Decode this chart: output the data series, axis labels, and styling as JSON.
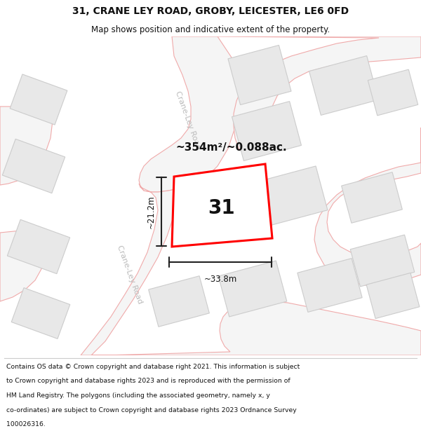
{
  "title_line1": "31, CRANE LEY ROAD, GROBY, LEICESTER, LE6 0FD",
  "title_line2": "Map shows position and indicative extent of the property.",
  "area_text": "~354m²/~0.088ac.",
  "property_number": "31",
  "dim_width": "~33.8m",
  "dim_height": "~21.2m",
  "footer_lines": [
    "Contains OS data © Crown copyright and database right 2021. This information is subject",
    "to Crown copyright and database rights 2023 and is reproduced with the permission of",
    "HM Land Registry. The polygons (including the associated geometry, namely x, y",
    "co-ordinates) are subject to Crown copyright and database rights 2023 Ordnance Survey",
    "100026316."
  ],
  "map_bg": "#ffffff",
  "road_line_color": "#f0aaaa",
  "building_fill": "#e8e8e8",
  "building_edge": "#cccccc",
  "property_edge": "#ff0000",
  "dim_line_color": "#222222",
  "road_label_color": "#bbbbbb",
  "title_color": "#111111",
  "footer_color": "#111111",
  "road_fill": "#f5f5f5"
}
